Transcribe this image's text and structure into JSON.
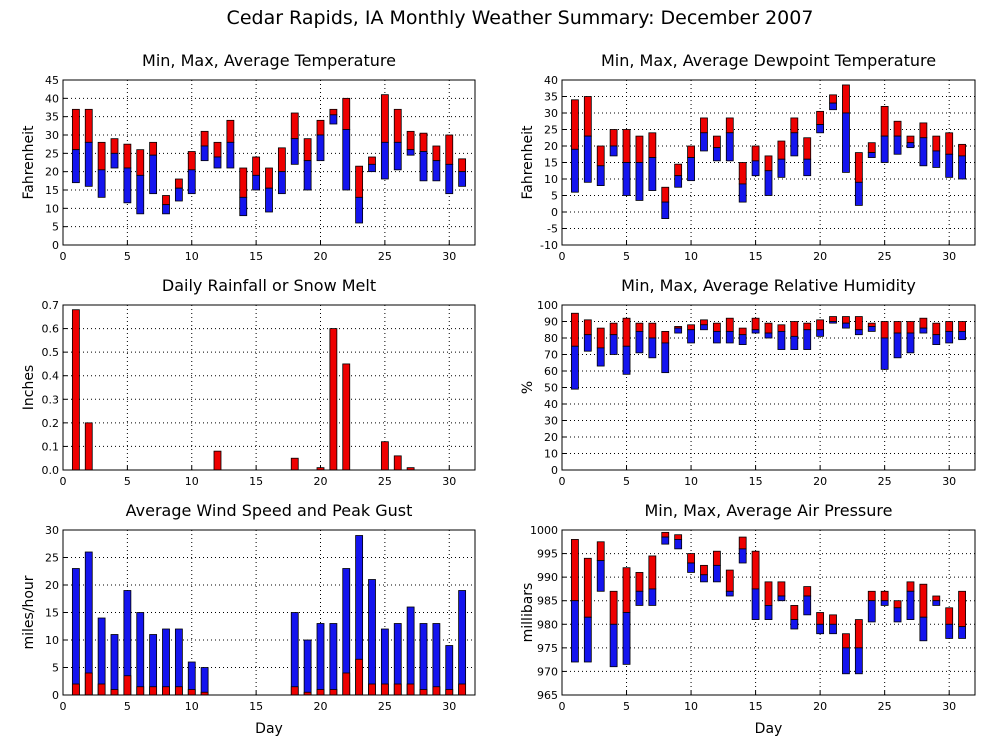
{
  "title": "Cedar Rapids, IA Monthly Weather Summary: December 2007",
  "colors": {
    "upper": "#ee0000",
    "lower": "#1414ee",
    "outline": "#000000"
  },
  "chart_data": [
    {
      "id": "temp",
      "type": "bar",
      "title": "Min, Max, Average Temperature",
      "xlabel": "",
      "ylabel": "Fahrenheit",
      "xlim": [
        0,
        32
      ],
      "xticks": [
        0,
        5,
        10,
        15,
        20,
        25,
        30
      ],
      "ylim": [
        0,
        45
      ],
      "yticks": [
        0,
        5,
        10,
        15,
        20,
        25,
        30,
        35,
        40,
        45
      ],
      "x": [
        1,
        2,
        3,
        4,
        5,
        6,
        7,
        8,
        9,
        10,
        11,
        12,
        13,
        14,
        15,
        16,
        17,
        18,
        19,
        20,
        21,
        22,
        23,
        24,
        25,
        26,
        27,
        28,
        29,
        30,
        31
      ],
      "min": [
        17,
        16,
        13,
        21,
        11.5,
        8.5,
        14,
        8.5,
        12,
        14,
        23,
        21,
        21,
        8,
        15,
        9,
        14,
        22,
        15,
        23,
        33,
        15,
        6,
        20,
        18,
        20.5,
        24.5,
        17.5,
        17.5,
        14,
        16
      ],
      "avg": [
        26,
        28,
        20.5,
        25,
        21,
        19,
        24.5,
        11,
        15.5,
        20.5,
        27,
        24,
        28,
        13,
        19,
        15.5,
        20,
        29,
        23,
        30,
        35.5,
        31.5,
        13,
        22,
        28,
        28,
        26,
        25.5,
        23,
        22,
        20
      ],
      "max": [
        37,
        37,
        28,
        29,
        27.5,
        26,
        28,
        13.5,
        18,
        25.5,
        31,
        28,
        34,
        21,
        24,
        21,
        26.5,
        36,
        29,
        34,
        37,
        40,
        21.5,
        24,
        41,
        37,
        31,
        30.5,
        27,
        30,
        23.5
      ]
    },
    {
      "id": "dewpoint",
      "type": "bar",
      "title": "Min, Max, Average Dewpoint Temperature",
      "xlabel": "",
      "ylabel": "Fahrenheit",
      "xlim": [
        0,
        32
      ],
      "xticks": [
        0,
        5,
        10,
        15,
        20,
        25,
        30
      ],
      "ylim": [
        -10,
        40
      ],
      "yticks": [
        -10,
        -5,
        0,
        5,
        10,
        15,
        20,
        25,
        30,
        35,
        40
      ],
      "x": [
        1,
        2,
        3,
        4,
        5,
        6,
        7,
        8,
        9,
        10,
        11,
        12,
        13,
        14,
        15,
        16,
        17,
        18,
        19,
        20,
        21,
        22,
        23,
        24,
        25,
        26,
        27,
        28,
        29,
        30,
        31
      ],
      "min": [
        6,
        9,
        8,
        17,
        5,
        3.5,
        6.5,
        -2,
        7.5,
        9.5,
        18.5,
        15.5,
        15.5,
        3,
        11,
        5,
        10.5,
        17,
        11,
        24,
        31,
        12,
        2,
        16.5,
        15,
        17.5,
        19.5,
        14,
        13.5,
        10.5,
        10
      ],
      "avg": [
        19,
        23,
        14,
        20,
        15,
        15,
        16.5,
        3,
        11,
        16.5,
        24,
        19.5,
        24,
        8.5,
        15.5,
        12.5,
        16,
        24,
        16,
        26.5,
        33,
        30,
        9,
        18,
        23,
        23,
        21,
        22.5,
        18.5,
        17.5,
        17
      ],
      "max": [
        34,
        35,
        20,
        25,
        25,
        23,
        24,
        7.5,
        14.5,
        20,
        28.5,
        23,
        28.5,
        15,
        20,
        17,
        21.5,
        28.5,
        22.5,
        30.5,
        35.5,
        38.5,
        18,
        21,
        32,
        27.5,
        23,
        27,
        23,
        24,
        20.5
      ]
    },
    {
      "id": "rain",
      "type": "bar",
      "title": "Daily Rainfall or Snow Melt",
      "xlabel": "",
      "ylabel": "Inches",
      "xlim": [
        0,
        32
      ],
      "xticks": [
        0,
        5,
        10,
        15,
        20,
        25,
        30
      ],
      "ylim": [
        0,
        0.7
      ],
      "yticks": [
        0,
        0.1,
        0.2,
        0.3,
        0.4,
        0.5,
        0.6,
        0.7
      ],
      "ytick_labels": [
        "0.0",
        "0.1",
        "0.2",
        "0.3",
        "0.4",
        "0.5",
        "0.6",
        "0.7"
      ],
      "x": [
        1,
        2,
        12,
        18,
        20,
        21,
        22,
        25,
        26,
        27
      ],
      "values": [
        0.68,
        0.2,
        0.08,
        0.05,
        0.01,
        0.6,
        0.45,
        0.12,
        0.06,
        0.01
      ]
    },
    {
      "id": "humidity",
      "type": "bar",
      "title": "Min, Max, Average Relative Humidity",
      "xlabel": "",
      "ylabel": "%",
      "xlim": [
        0,
        32
      ],
      "xticks": [
        0,
        5,
        10,
        15,
        20,
        25,
        30
      ],
      "ylim": [
        0,
        100
      ],
      "yticks": [
        0,
        10,
        20,
        30,
        40,
        50,
        60,
        70,
        80,
        90,
        100
      ],
      "x": [
        1,
        2,
        3,
        4,
        5,
        6,
        7,
        8,
        9,
        10,
        11,
        12,
        13,
        14,
        15,
        16,
        17,
        18,
        19,
        20,
        21,
        22,
        23,
        24,
        25,
        26,
        27,
        28,
        29,
        30,
        31
      ],
      "min": [
        49,
        72,
        63,
        70,
        58,
        71,
        68,
        59,
        83,
        77,
        85,
        77,
        77,
        76,
        83,
        80,
        73,
        73,
        73,
        81,
        89,
        86,
        82,
        84,
        61,
        68,
        71,
        83,
        76,
        77,
        79
      ],
      "avg": [
        75,
        82,
        74,
        82,
        75,
        84,
        80,
        77,
        86,
        85,
        88,
        84,
        84,
        82,
        85,
        83,
        84,
        81,
        85,
        85,
        90,
        89,
        85,
        87,
        80,
        83,
        83,
        86,
        82,
        84,
        84
      ],
      "max": [
        95,
        91,
        86,
        89,
        92,
        89,
        89,
        84,
        87,
        88,
        91,
        89,
        92,
        86,
        92,
        89,
        88,
        90,
        89,
        91,
        93,
        93,
        93,
        89,
        90,
        90,
        90,
        92,
        89,
        90,
        90
      ]
    },
    {
      "id": "wind",
      "type": "bar",
      "title": "Average Wind Speed and Peak Gust",
      "xlabel": "Day",
      "ylabel": "miles/hour",
      "xlim": [
        0,
        32
      ],
      "xticks": [
        0,
        5,
        10,
        15,
        20,
        25,
        30
      ],
      "ylim": [
        0,
        30
      ],
      "yticks": [
        0,
        5,
        10,
        15,
        20,
        25,
        30
      ],
      "x": [
        1,
        2,
        3,
        4,
        5,
        6,
        7,
        8,
        9,
        10,
        11,
        18,
        19,
        20,
        21,
        22,
        23,
        24,
        25,
        26,
        27,
        28,
        29,
        30,
        31
      ],
      "gust": [
        23,
        26,
        14,
        11,
        19,
        15,
        11,
        12,
        12,
        6,
        5,
        15,
        10,
        13,
        13,
        23,
        29,
        21,
        12,
        13,
        16,
        13,
        13,
        9,
        19
      ],
      "avg": [
        2,
        4,
        2,
        1,
        3.5,
        1.5,
        1.5,
        1.5,
        1.5,
        1,
        0.5,
        1.5,
        0.5,
        1,
        1,
        4,
        6.5,
        2,
        2,
        2,
        2,
        1,
        1.5,
        1,
        2
      ]
    },
    {
      "id": "pressure",
      "type": "bar",
      "title": "Min, Max, Average Air Pressure",
      "xlabel": "Day",
      "ylabel": "millibars",
      "xlim": [
        0,
        32
      ],
      "xticks": [
        0,
        5,
        10,
        15,
        20,
        25,
        30
      ],
      "ylim": [
        965,
        1000
      ],
      "yticks": [
        965,
        970,
        975,
        980,
        985,
        990,
        995,
        1000
      ],
      "x": [
        1,
        2,
        3,
        4,
        5,
        6,
        7,
        8,
        9,
        10,
        11,
        12,
        13,
        14,
        15,
        16,
        17,
        18,
        19,
        20,
        21,
        22,
        23,
        24,
        25,
        26,
        27,
        28,
        29,
        30,
        31
      ],
      "min": [
        972,
        972,
        987,
        971,
        971.5,
        984,
        984,
        997,
        996,
        991,
        989,
        989,
        986,
        993,
        981,
        981,
        985,
        979,
        982,
        978,
        978,
        969.5,
        969.5,
        980.5,
        984,
        980.5,
        981,
        976.5,
        984,
        977,
        977
      ],
      "avg": [
        985,
        981.5,
        993.5,
        980,
        982.5,
        987,
        987.5,
        998.5,
        998,
        993,
        990.5,
        992.5,
        987,
        996,
        987.5,
        984,
        986,
        981,
        986,
        980,
        980,
        975,
        975,
        985,
        985,
        983.5,
        987,
        981.5,
        985,
        980,
        979.5
      ],
      "max": [
        998,
        994,
        997.5,
        987,
        992,
        991,
        994.5,
        999.5,
        999,
        995,
        992.5,
        995.5,
        991.5,
        998.5,
        995.5,
        989,
        989,
        984,
        988,
        982.5,
        982,
        978,
        981,
        987,
        987,
        985,
        989,
        988.5,
        986,
        983.5,
        987
      ]
    }
  ]
}
